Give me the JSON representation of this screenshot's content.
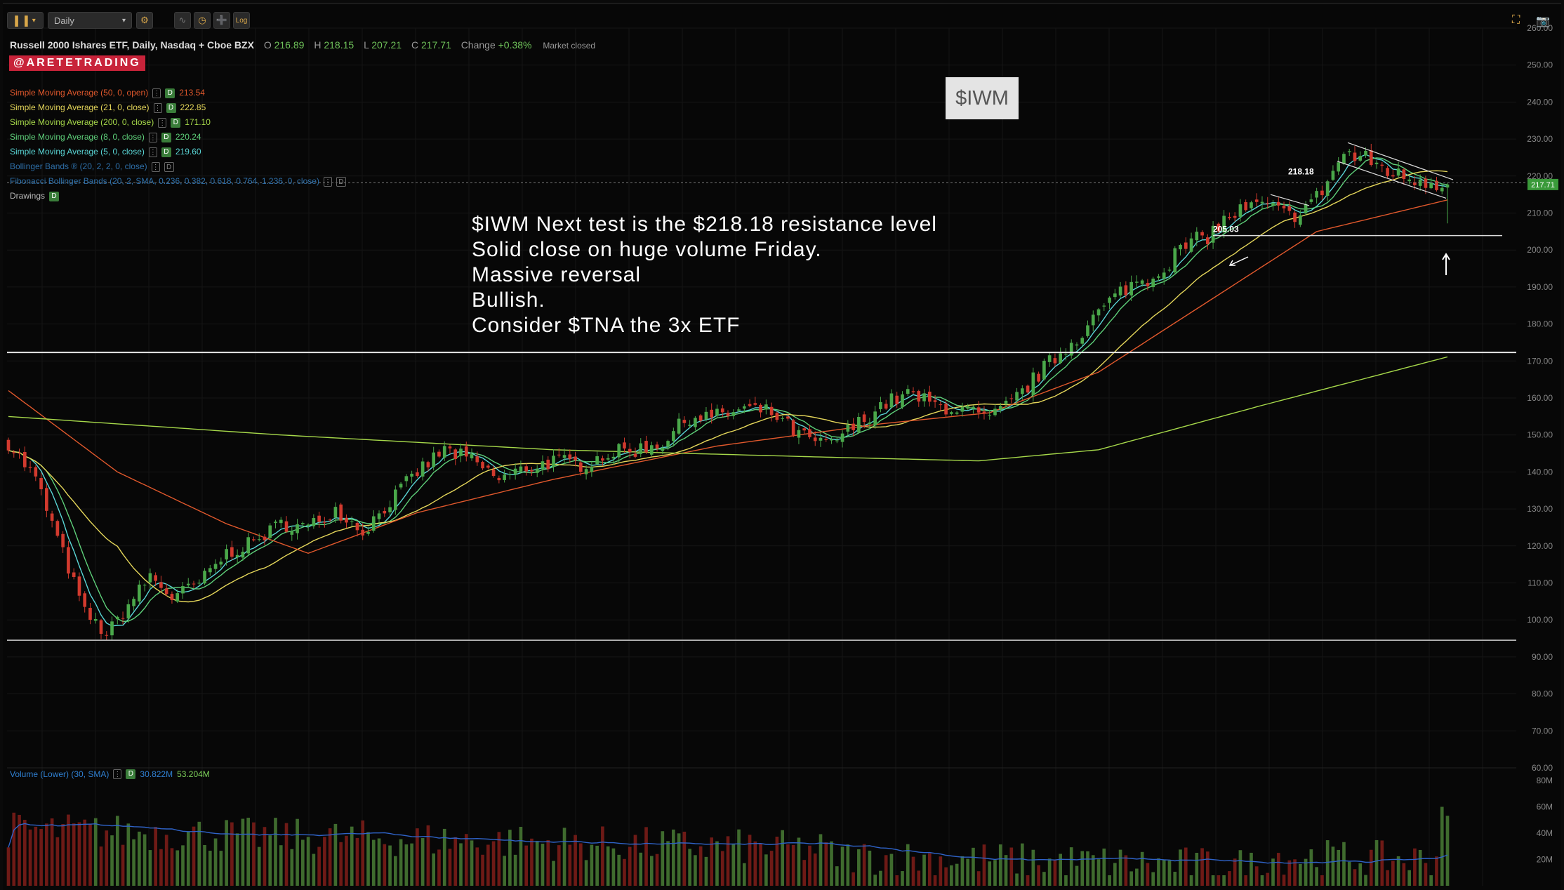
{
  "toolbar": {
    "timeframe": "Daily",
    "log_label": "Log"
  },
  "header": {
    "symbol_name": "Russell 2000 Ishares ETF, Daily, Nasdaq + Cboe BZX",
    "o_label": "O",
    "o_value": "216.89",
    "h_label": "H",
    "h_value": "218.15",
    "l_label": "L",
    "l_value": "207.21",
    "c_label": "C",
    "c_value": "217.71",
    "change_label": "Change",
    "change_value": "+0.38%",
    "market_status": "Market closed"
  },
  "badge": "@ARETETRADING",
  "studies": [
    {
      "label": "Simple Moving Average (50, 0, open)",
      "value": "213.54",
      "color": "#e0582c",
      "enabled": true
    },
    {
      "label": "Simple Moving Average (21, 0, close)",
      "value": "222.85",
      "color": "#e4d65a",
      "enabled": true
    },
    {
      "label": "Simple Moving Average (200, 0, close)",
      "value": "171.10",
      "color": "#a6d84a",
      "enabled": true
    },
    {
      "label": "Simple Moving Average (8, 0, close)",
      "value": "220.24",
      "color": "#5ed07a",
      "enabled": true
    },
    {
      "label": "Simple Moving Average (5, 0, close)",
      "value": "219.60",
      "color": "#5ad6d6",
      "enabled": true
    },
    {
      "label": "Bollinger Bands ® (20, 2, 2, 0, close)",
      "value": "",
      "color": "#2e6fa8",
      "enabled": false
    },
    {
      "label": "Fibonacci Bollinger Bands (20, 2, SMA, 0.236, 0.382, 0.618, 0.764, 1.236, 0, close)",
      "value": "",
      "color": "#2e6fa8",
      "enabled": false
    },
    {
      "label": "Drawings",
      "value": "",
      "color": "#bbbbbb",
      "enabled": true
    }
  ],
  "ticker_label": "$IWM",
  "note_lines": [
    "$IWM Next test is the $218.18 resistance level",
    "Solid close on huge volume Friday.",
    "Massive reversal",
    "Bullish.",
    "Consider $TNA the 3x ETF"
  ],
  "volume_legend": {
    "label": "Volume (Lower) (30, SMA)",
    "value1": "30.822M",
    "value2": "53.204M"
  },
  "colors": {
    "up": "#4aa84a",
    "down": "#d23a2e",
    "vol_up": "#3f6b2e",
    "vol_down": "#6e1a16",
    "vol_sma": "#2f63c8",
    "price_badge": "#3a9a3a"
  },
  "chart_data": {
    "type": "candlestick",
    "price_axis": {
      "min": 60,
      "max": 260,
      "ticks": [
        "260.00",
        "250.00",
        "240.00",
        "230.00",
        "220.00",
        "210.00",
        "200.00",
        "190.00",
        "180.00",
        "170.00",
        "160.00",
        "150.00",
        "140.00",
        "130.00",
        "120.00",
        "110.00",
        "100.00",
        "90.00",
        "80.00",
        "70.00",
        "60.00"
      ]
    },
    "volume_axis": {
      "max": 80,
      "ticks": [
        "80M",
        "60M",
        "40M",
        "20M"
      ]
    },
    "last_price": "217.71",
    "horizontal_levels": [
      {
        "value": 172.3,
        "label": ""
      },
      {
        "value": 94.5,
        "label": ""
      },
      {
        "value": 203.9,
        "label": ""
      },
      {
        "value": 218.18,
        "label": "218.18"
      },
      {
        "value": 205.03,
        "label": "205.03"
      }
    ],
    "path_anchors": [
      [
        0,
        148
      ],
      [
        5,
        138
      ],
      [
        10,
        118
      ],
      [
        14,
        102
      ],
      [
        18,
        96
      ],
      [
        22,
        104
      ],
      [
        26,
        112
      ],
      [
        30,
        106
      ],
      [
        35,
        110
      ],
      [
        40,
        118
      ],
      [
        45,
        121
      ],
      [
        50,
        126
      ],
      [
        55,
        125
      ],
      [
        60,
        130
      ],
      [
        65,
        124
      ],
      [
        70,
        132
      ],
      [
        75,
        140
      ],
      [
        80,
        146
      ],
      [
        85,
        143
      ],
      [
        90,
        138
      ],
      [
        95,
        141
      ],
      [
        100,
        143
      ],
      [
        105,
        142
      ],
      [
        110,
        145
      ],
      [
        115,
        146
      ],
      [
        120,
        148
      ],
      [
        125,
        155
      ],
      [
        130,
        155
      ],
      [
        135,
        157
      ],
      [
        140,
        156
      ],
      [
        145,
        150
      ],
      [
        150,
        147
      ],
      [
        155,
        152
      ],
      [
        160,
        158
      ],
      [
        165,
        161
      ],
      [
        170,
        158
      ],
      [
        175,
        157
      ],
      [
        180,
        154
      ],
      [
        185,
        160
      ],
      [
        190,
        168
      ],
      [
        195,
        175
      ],
      [
        200,
        183
      ],
      [
        205,
        190
      ],
      [
        210,
        193
      ],
      [
        215,
        200
      ],
      [
        220,
        204
      ],
      [
        225,
        210
      ],
      [
        230,
        212
      ],
      [
        235,
        209
      ],
      [
        240,
        214
      ],
      [
        245,
        226
      ],
      [
        250,
        224
      ],
      [
        255,
        220
      ],
      [
        260,
        219
      ],
      [
        264,
        217.71
      ]
    ],
    "sma200_anchors": [
      [
        0,
        155
      ],
      [
        50,
        150
      ],
      [
        100,
        146
      ],
      [
        150,
        144
      ],
      [
        178,
        143
      ],
      [
        200,
        146
      ],
      [
        230,
        158
      ],
      [
        264,
        171.1
      ]
    ],
    "sma50_anchors": [
      [
        0,
        162
      ],
      [
        20,
        140
      ],
      [
        40,
        126
      ],
      [
        55,
        118
      ],
      [
        75,
        129
      ],
      [
        100,
        138
      ],
      [
        130,
        147
      ],
      [
        160,
        153
      ],
      [
        180,
        156
      ],
      [
        200,
        167
      ],
      [
        220,
        186
      ],
      [
        240,
        205
      ],
      [
        264,
        213.54
      ]
    ]
  }
}
